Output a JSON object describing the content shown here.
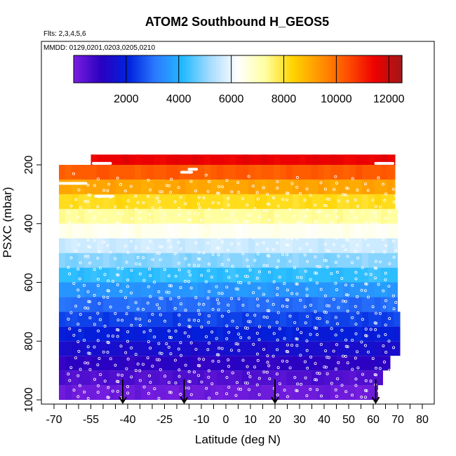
{
  "chart_data": {
    "type": "heatmap",
    "title": "ATOM2 Southbound H_GEOS5",
    "subtitle_flights": "Flts: 2,3,4,5,6",
    "subtitle_dates": "MMDD: 0129,0201,0203,0205,0210",
    "xlabel": "Latitude (deg N)",
    "ylabel": "PSXC (mbar)",
    "xlim": [
      -70,
      85
    ],
    "ylim": [
      1000,
      60
    ],
    "y_reversed": true,
    "x_ticks": [
      -70,
      -55,
      -40,
      -25,
      -10,
      0,
      10,
      20,
      30,
      40,
      50,
      60,
      70,
      80
    ],
    "x_tick_labels": [
      "-70",
      "-55",
      "-40",
      "-25",
      "-10",
      "0",
      "10",
      "20",
      "30",
      "40",
      "50",
      "60",
      "70",
      "80"
    ],
    "x_minor_ticks": [
      -65,
      -60,
      -50,
      -45,
      -35,
      -30,
      -20,
      -15,
      -5,
      5,
      15,
      25,
      35,
      45,
      55,
      65,
      75,
      85
    ],
    "y_ticks": [
      200,
      400,
      600,
      800,
      1000
    ],
    "y_tick_labels": [
      "200",
      "400",
      "600",
      "800",
      "1000"
    ],
    "grid": false,
    "colorbar": {
      "min": 0,
      "max": 12500,
      "ticks": [
        2000,
        4000,
        6000,
        8000,
        10000,
        12000
      ],
      "tick_labels": [
        "2000",
        "4000",
        "6000",
        "8000",
        "10000",
        "12000"
      ],
      "colors": [
        "#7a1fe0",
        "#2a00c0",
        "#0022dd",
        "#2b7bff",
        "#22bbff",
        "#a8dcff",
        "#ffffff",
        "#ffffa0",
        "#ffd400",
        "#ff9400",
        "#ff5000",
        "#ee0000",
        "#a01818"
      ]
    },
    "bands": [
      {
        "p_top": 950,
        "p_bot": 1000,
        "lat_min": -68,
        "lat_max": 62,
        "value": 150
      },
      {
        "p_top": 900,
        "p_bot": 950,
        "lat_min": -68,
        "lat_max": 64,
        "value": 550
      },
      {
        "p_top": 850,
        "p_bot": 900,
        "lat_min": -68,
        "lat_max": 67,
        "value": 1000
      },
      {
        "p_top": 800,
        "p_bot": 850,
        "lat_min": -68,
        "lat_max": 71,
        "value": 1450
      },
      {
        "p_top": 750,
        "p_bot": 800,
        "lat_min": -68,
        "lat_max": 71,
        "value": 1950
      },
      {
        "p_top": 700,
        "p_bot": 750,
        "lat_min": -68,
        "lat_max": 71,
        "value": 2450
      },
      {
        "p_top": 650,
        "p_bot": 700,
        "lat_min": -68,
        "lat_max": 70,
        "value": 2950
      },
      {
        "p_top": 600,
        "p_bot": 650,
        "lat_min": -68,
        "lat_max": 70,
        "value": 3550
      },
      {
        "p_top": 550,
        "p_bot": 600,
        "lat_min": -68,
        "lat_max": 70,
        "value": 4250
      },
      {
        "p_top": 500,
        "p_bot": 550,
        "lat_min": -68,
        "lat_max": 70,
        "value": 4950
      },
      {
        "p_top": 450,
        "p_bot": 500,
        "lat_min": -68,
        "lat_max": 70,
        "value": 5650
      },
      {
        "p_top": 400,
        "p_bot": 450,
        "lat_min": -68,
        "lat_max": 70,
        "value": 6450
      },
      {
        "p_top": 350,
        "p_bot": 400,
        "lat_min": -68,
        "lat_max": 70,
        "value": 7300
      },
      {
        "p_top": 300,
        "p_bot": 350,
        "lat_min": -68,
        "lat_max": 69,
        "value": 8150
      },
      {
        "p_top": 250,
        "p_bot": 300,
        "lat_min": -68,
        "lat_max": 69,
        "value": 9100
      },
      {
        "p_top": 200,
        "p_bot": 250,
        "lat_min": -68,
        "lat_max": 69,
        "value": 10250
      },
      {
        "p_top": 165,
        "p_bot": 200,
        "lat_min": -55,
        "lat_max": 69,
        "value": 11500
      }
    ],
    "vertical_profiles_lat": [
      -62,
      -58,
      -54,
      -50,
      -46,
      -42,
      -38,
      -33,
      -29,
      -25,
      -21,
      -17,
      -13,
      -9,
      -5,
      -1,
      3,
      7,
      11,
      15,
      19,
      23,
      27,
      31,
      35,
      39,
      43,
      47,
      51,
      55,
      59,
      63,
      67
    ],
    "highlight_segments": [
      {
        "lat_start": -54,
        "lat_end": -47,
        "pressure": 195
      },
      {
        "lat_start": -68,
        "lat_end": -57,
        "pressure": 263
      },
      {
        "lat_start": -53,
        "lat_end": -46,
        "pressure": 307
      },
      {
        "lat_start": -18,
        "lat_end": -14,
        "pressure": 225
      },
      {
        "lat_start": -15,
        "lat_end": -12,
        "pressure": 215
      },
      {
        "lat_start": 61,
        "lat_end": 68,
        "pressure": 195
      }
    ],
    "arrows_lat": [
      -42,
      -17,
      20,
      61
    ]
  }
}
